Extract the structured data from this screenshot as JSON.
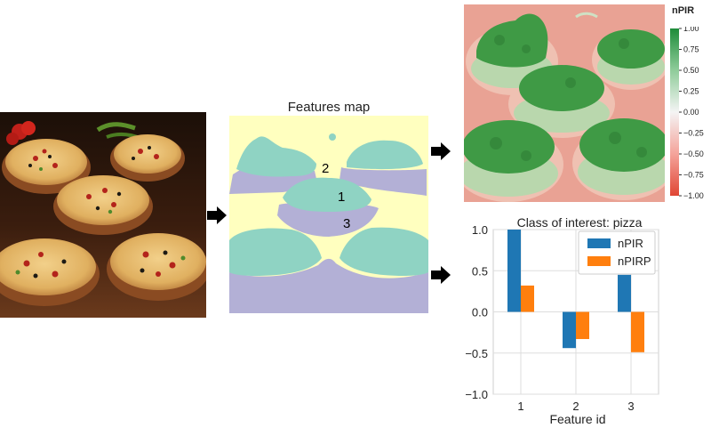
{
  "features_map": {
    "title": "Features map",
    "feature_labels": [
      "1",
      "2",
      "3"
    ]
  },
  "colorbar": {
    "title": "nPIR",
    "ticks": [
      "1.00",
      "0.75",
      "0.50",
      "0.25",
      "0.00",
      "−0.25",
      "−0.50",
      "−0.75",
      "−1.00"
    ]
  },
  "chart_data": {
    "type": "bar",
    "title": "Class of interest: pizza",
    "xlabel": "Feature id",
    "ylabel": "",
    "categories": [
      "1",
      "2",
      "3"
    ],
    "series": [
      {
        "name": "nPIR",
        "values": [
          1.0,
          -0.44,
          0.45
        ],
        "color": "#1f77b4"
      },
      {
        "name": "nPIRP",
        "values": [
          0.32,
          -0.33,
          -0.49
        ],
        "color": "#ff7f0e"
      }
    ],
    "ylim": [
      -1.0,
      1.0
    ],
    "yticks": [
      "1.0",
      "0.5",
      "0.0",
      "−0.5",
      "−1.0"
    ],
    "grid": true,
    "legend_position": "top-right"
  },
  "colors": {
    "feature_yellow": "#ffffbf",
    "feature_teal": "#8fd3c3",
    "feature_lavender": "#b3b0d6",
    "heat_positive": "#3f9a45",
    "heat_negative": "#e9a294"
  },
  "icons": [
    "arrow-right-icon"
  ]
}
